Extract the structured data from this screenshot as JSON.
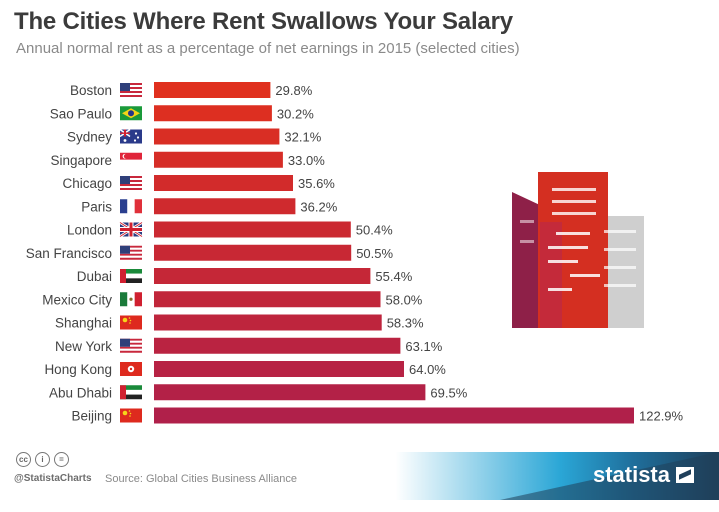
{
  "header": {
    "title": "The Cities Where Rent Swallows Your Salary",
    "subtitle": "Annual normal rent as a percentage of net earnings in 2015 (selected cities)"
  },
  "chart_data": {
    "type": "bar",
    "orientation": "horizontal",
    "title": "The Cities Where Rent Swallows Your Salary",
    "subtitle": "Annual normal rent as a percentage of net earnings in 2015 (selected cities)",
    "value_suffix": "%",
    "categories": [
      "Boston",
      "Sao Paulo",
      "Sydney",
      "Singapore",
      "Chicago",
      "Paris",
      "London",
      "San Francisco",
      "Dubai",
      "Mexico City",
      "Shanghai",
      "New York",
      "Hong Kong",
      "Abu Dhabi",
      "Beijing"
    ],
    "values": [
      29.8,
      30.2,
      32.1,
      33.0,
      35.6,
      36.2,
      50.4,
      50.5,
      55.4,
      58.0,
      58.3,
      63.1,
      64.0,
      69.5,
      122.9
    ],
    "value_labels": [
      "29.8%",
      "30.2%",
      "32.1%",
      "33.0%",
      "35.6%",
      "36.2%",
      "50.4%",
      "50.5%",
      "55.4%",
      "58.0%",
      "58.3%",
      "63.1%",
      "64.0%",
      "69.5%",
      "122.9%"
    ],
    "flags": [
      "us",
      "br",
      "au",
      "sg",
      "us",
      "fr",
      "gb",
      "us",
      "ae",
      "mx",
      "cn",
      "us",
      "hk",
      "ae",
      "cn"
    ],
    "bar_color_start": "#e0301e",
    "bar_color_end": "#b0204a",
    "xlim": [
      0,
      122.9
    ],
    "grid": false,
    "legend": "none"
  },
  "footer": {
    "handle": "@StatistaCharts",
    "source": "Source: Global Cities Business Alliance",
    "brand": "statista",
    "cc_icons": [
      "cc",
      "i",
      "="
    ]
  },
  "colors": {
    "title": "#3b3b3b",
    "subtitle": "#8a8a8a",
    "footer_dark": "#1f3f5a",
    "footer_mid": "#1c6a96",
    "footer_light": "#28b5e0"
  }
}
